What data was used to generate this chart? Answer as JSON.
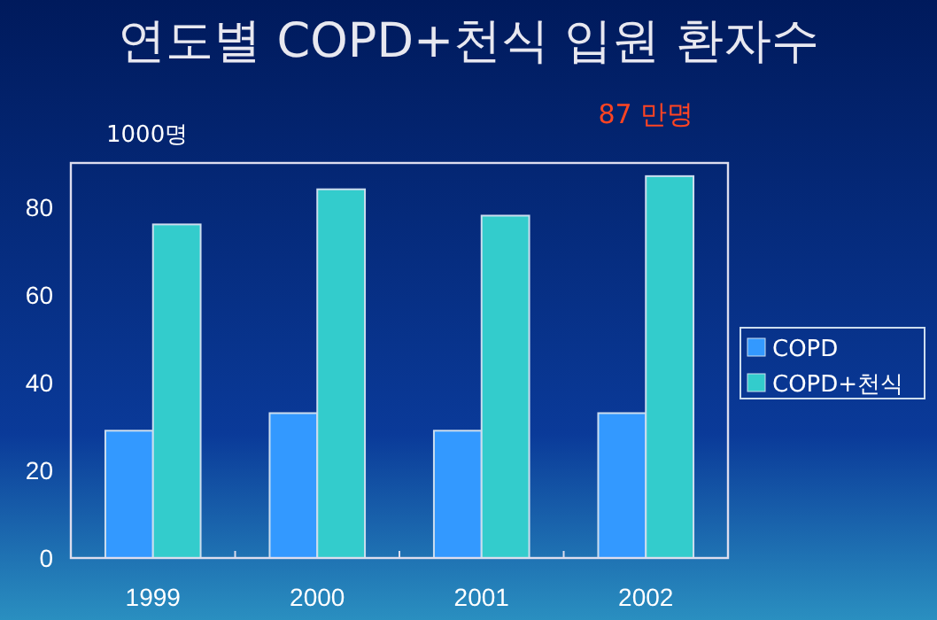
{
  "chart_data": {
    "type": "bar",
    "title": "연도별 COPD+천식 입원 환자수",
    "ylabel": "1000명",
    "categories": [
      "1999",
      "2000",
      "2001",
      "2002"
    ],
    "series": [
      {
        "name": "COPD",
        "color": "#3399ff",
        "values": [
          29,
          33,
          29,
          33
        ]
      },
      {
        "name": "COPD+천식",
        "color": "#33cccc",
        "values": [
          76,
          84,
          78,
          87
        ]
      }
    ],
    "ylim": [
      0,
      90
    ],
    "yticks": [
      0,
      20,
      40,
      60,
      80
    ],
    "grid": false,
    "legend": "right",
    "annotations": [
      {
        "text": "87 만명",
        "x": "2002",
        "y": 87
      }
    ]
  }
}
